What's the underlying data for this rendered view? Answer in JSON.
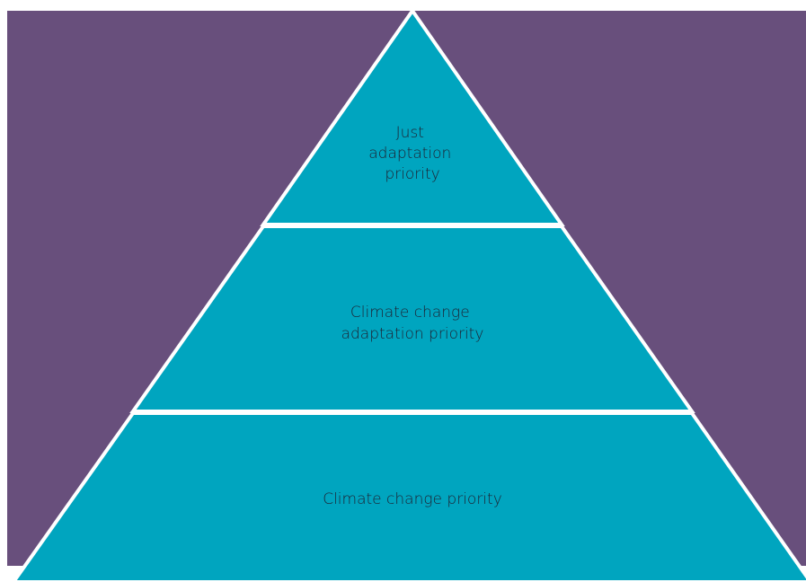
{
  "nodes": [
    {
      "lines": [
        "Just",
        "adaptation",
        "priority"
      ]
    },
    {
      "lines": [
        "Climate change",
        "adaptation priority"
      ]
    },
    {
      "lines": [
        "Climate change priority"
      ]
    }
  ]
}
